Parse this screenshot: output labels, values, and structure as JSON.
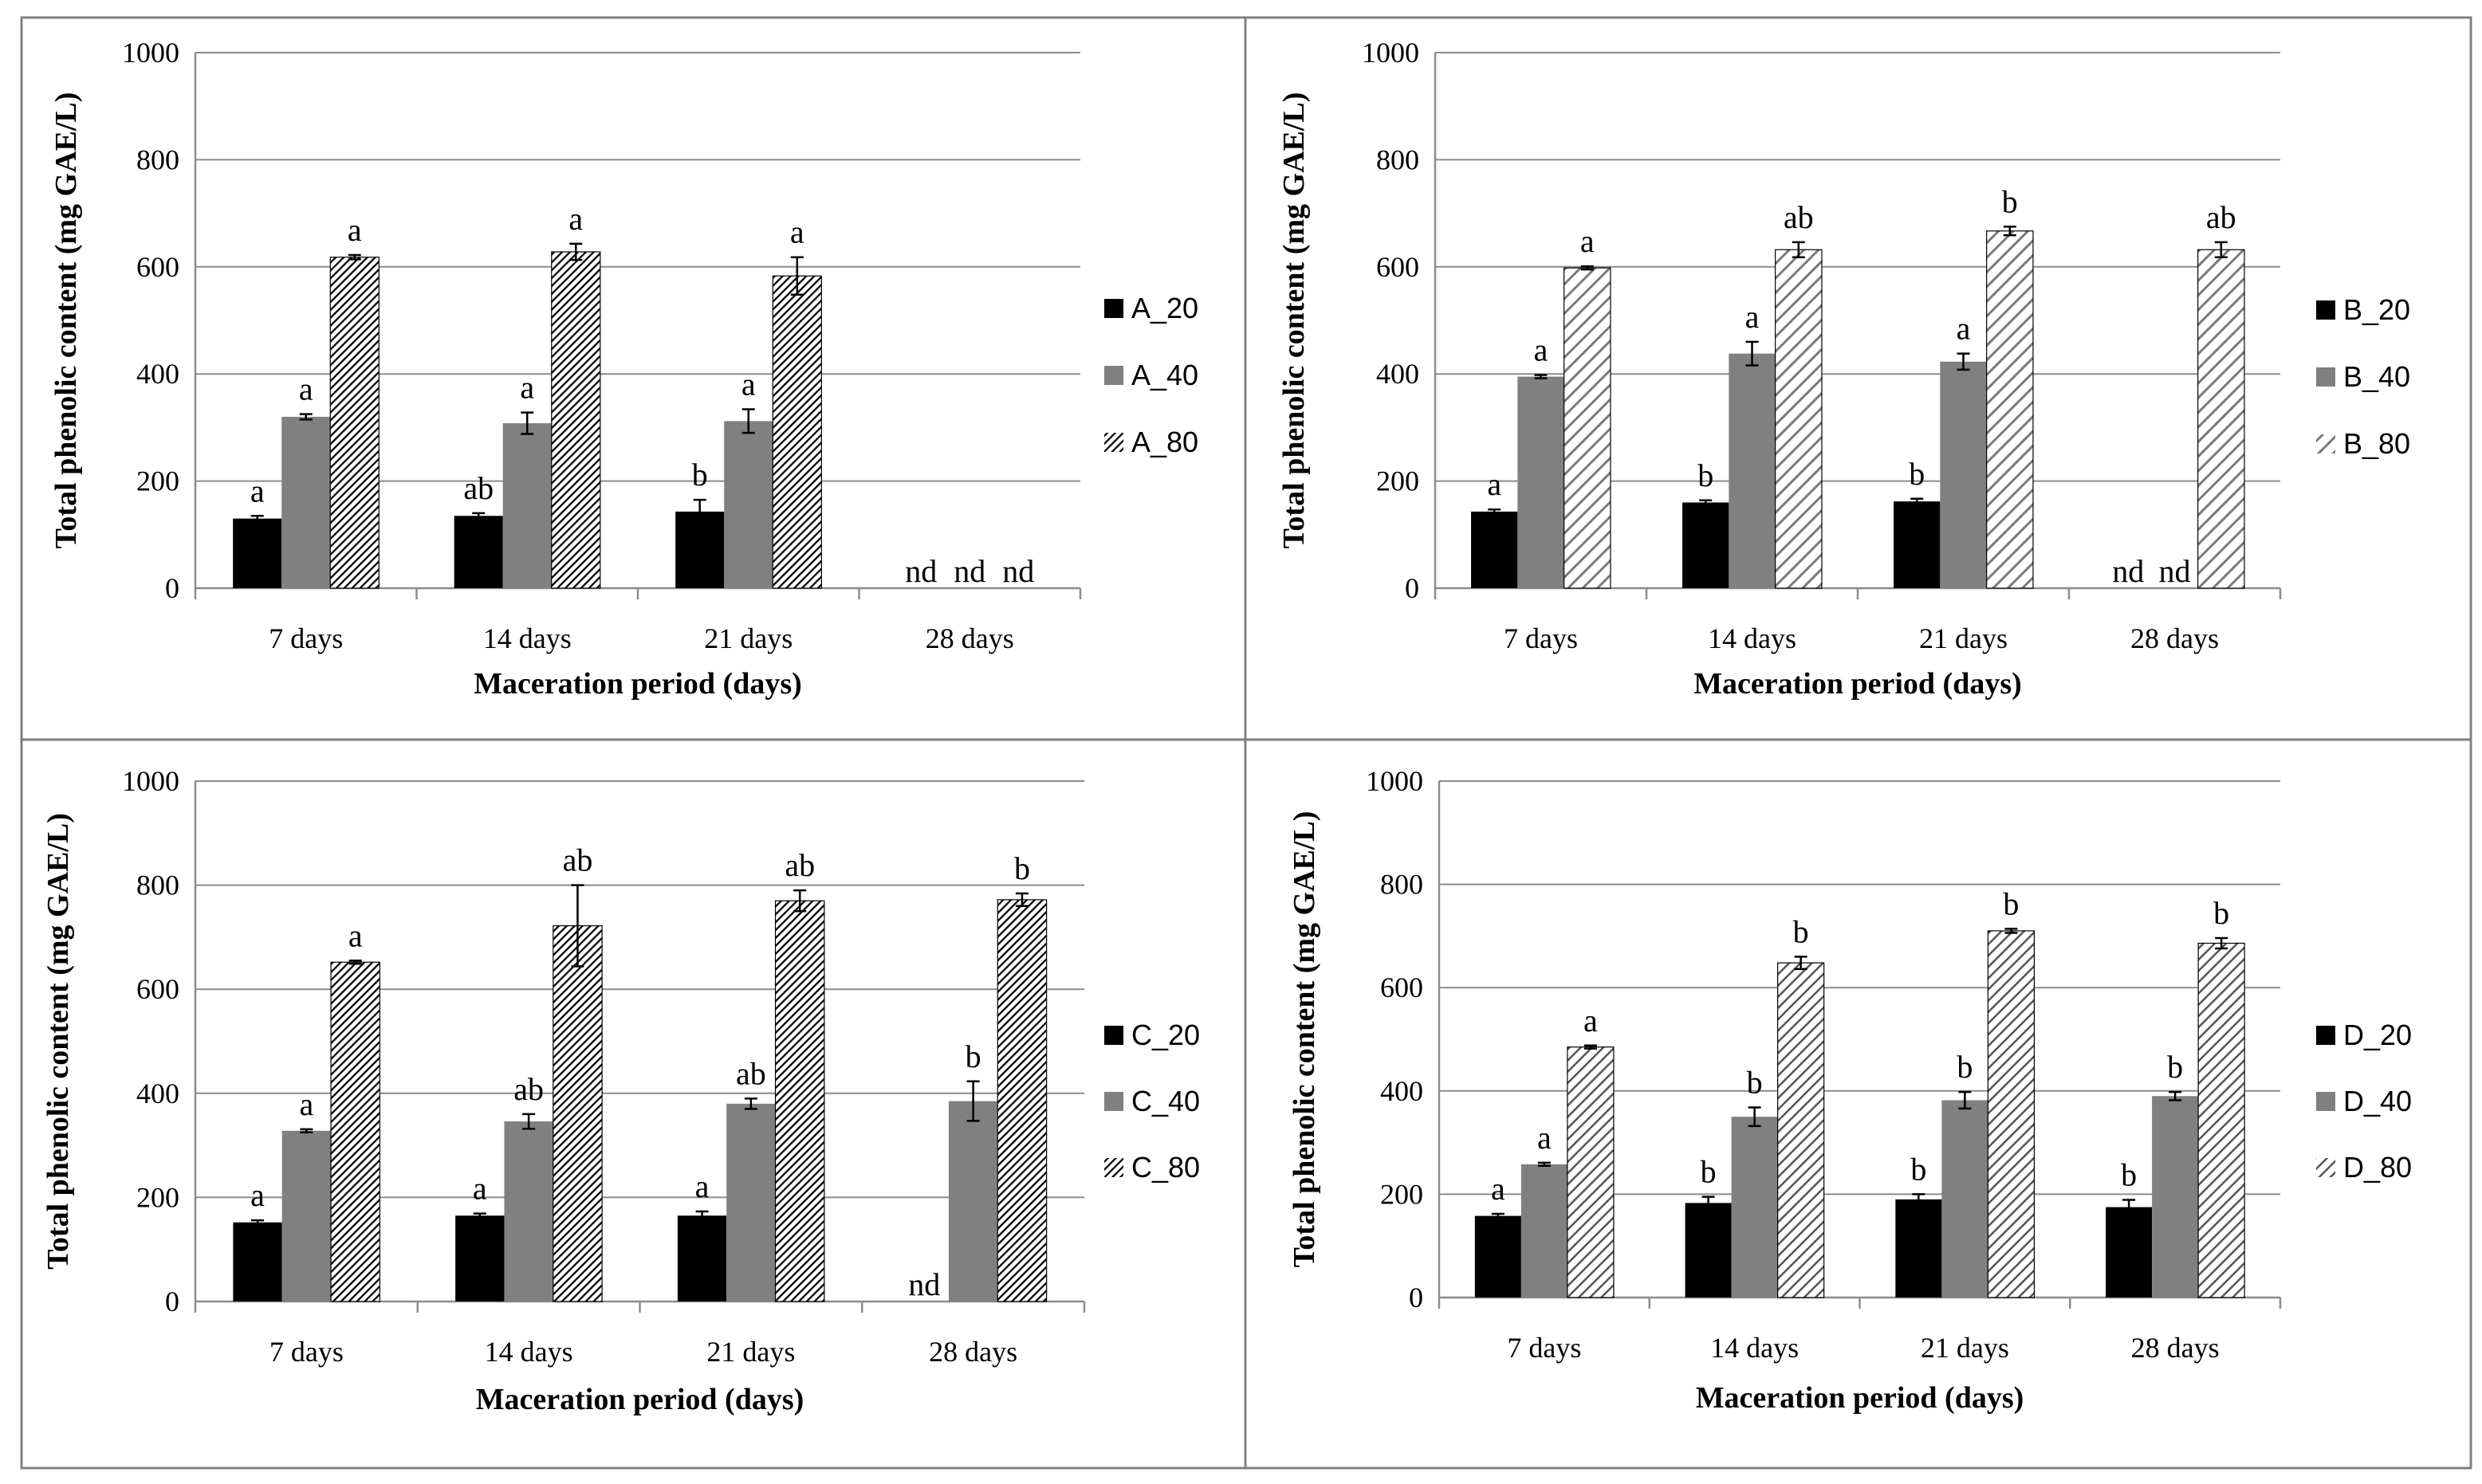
{
  "chart_data": [
    {
      "type": "bar",
      "panel": "A",
      "title": "",
      "xlabel": "Maceration period (days)",
      "ylabel": "Total phenolic content (mg GAE/L)",
      "ylim": [
        0,
        1000
      ],
      "yticks": [
        0,
        200,
        400,
        600,
        800,
        1000
      ],
      "categories": [
        "7 days",
        "14 days",
        "21 days",
        "28 days"
      ],
      "series": [
        {
          "name": "A_20",
          "pattern": "solid-black",
          "values": [
            130,
            135,
            143,
            null
          ],
          "errors": [
            5,
            5,
            22,
            null
          ],
          "labels": [
            "a",
            "ab",
            "b",
            "nd"
          ]
        },
        {
          "name": "A_40",
          "pattern": "solid-gray",
          "values": [
            320,
            308,
            312,
            null
          ],
          "errors": [
            5,
            20,
            22,
            null
          ],
          "labels": [
            "a",
            "a",
            "a",
            "nd"
          ]
        },
        {
          "name": "A_80",
          "pattern": "hatch-dense",
          "values": [
            618,
            628,
            583,
            null
          ],
          "errors": [
            4,
            15,
            35,
            null
          ],
          "labels": [
            "a",
            "a",
            "a",
            "nd"
          ]
        }
      ]
    },
    {
      "type": "bar",
      "panel": "B",
      "title": "",
      "xlabel": "Maceration period (days)",
      "ylabel": "Total phenolic content (mg GAE/L)",
      "ylim": [
        0,
        1000
      ],
      "yticks": [
        0,
        200,
        400,
        600,
        800,
        1000
      ],
      "categories": [
        "7 days",
        "14 days",
        "21 days",
        "28 days"
      ],
      "series": [
        {
          "name": "B_20",
          "pattern": "solid-black",
          "values": [
            143,
            160,
            162,
            null
          ],
          "errors": [
            4,
            4,
            5,
            null
          ],
          "labels": [
            "a",
            "b",
            "b",
            "nd"
          ]
        },
        {
          "name": "B_40",
          "pattern": "solid-gray",
          "values": [
            395,
            438,
            423,
            null
          ],
          "errors": [
            3,
            22,
            15,
            null
          ],
          "labels": [
            "a",
            "a",
            "a",
            "nd"
          ]
        },
        {
          "name": "B_80",
          "pattern": "hatch-wide",
          "values": [
            598,
            632,
            667,
            632
          ],
          "errors": [
            3,
            14,
            8,
            14
          ],
          "labels": [
            "a",
            "ab",
            "b",
            "ab"
          ]
        }
      ]
    },
    {
      "type": "bar",
      "panel": "C",
      "title": "",
      "xlabel": "Maceration period (days)",
      "ylabel": "Total phenolic content (mg GAE/L)",
      "ylim": [
        0,
        1000
      ],
      "yticks": [
        0,
        200,
        400,
        600,
        800,
        1000
      ],
      "categories": [
        "7 days",
        "14 days",
        "21 days",
        "28 days"
      ],
      "series": [
        {
          "name": "C_20",
          "pattern": "solid-black",
          "values": [
            152,
            165,
            165,
            null
          ],
          "errors": [
            4,
            4,
            8,
            null
          ],
          "labels": [
            "a",
            "a",
            "a",
            "nd"
          ]
        },
        {
          "name": "C_40",
          "pattern": "solid-gray",
          "values": [
            328,
            346,
            380,
            385
          ],
          "errors": [
            3,
            14,
            10,
            38
          ],
          "labels": [
            "a",
            "ab",
            "ab",
            "b"
          ]
        },
        {
          "name": "C_80",
          "pattern": "hatch-dense",
          "values": [
            652,
            722,
            770,
            772
          ],
          "errors": [
            3,
            78,
            20,
            12
          ],
          "labels": [
            "a",
            "ab",
            "ab",
            "b"
          ]
        }
      ]
    },
    {
      "type": "bar",
      "panel": "D",
      "title": "",
      "xlabel": "Maceration period (days)",
      "ylabel": "Total phenolic content (mg GAE/L)",
      "ylim": [
        0,
        1000
      ],
      "yticks": [
        0,
        200,
        400,
        600,
        800,
        1000
      ],
      "categories": [
        "7 days",
        "14 days",
        "21 days",
        "28 days"
      ],
      "series": [
        {
          "name": "D_20",
          "pattern": "solid-black",
          "values": [
            158,
            183,
            190,
            175
          ],
          "errors": [
            4,
            12,
            10,
            14
          ],
          "labels": [
            "a",
            "b",
            "b",
            "b"
          ]
        },
        {
          "name": "D_40",
          "pattern": "solid-gray",
          "values": [
            258,
            350,
            382,
            390
          ],
          "errors": [
            3,
            18,
            16,
            8
          ],
          "labels": [
            "a",
            "b",
            "b",
            "b"
          ]
        },
        {
          "name": "D_80",
          "pattern": "hatch-medium",
          "values": [
            485,
            648,
            710,
            686
          ],
          "errors": [
            3,
            12,
            4,
            10
          ],
          "labels": [
            "a",
            "b",
            "b",
            "b"
          ]
        }
      ]
    }
  ]
}
